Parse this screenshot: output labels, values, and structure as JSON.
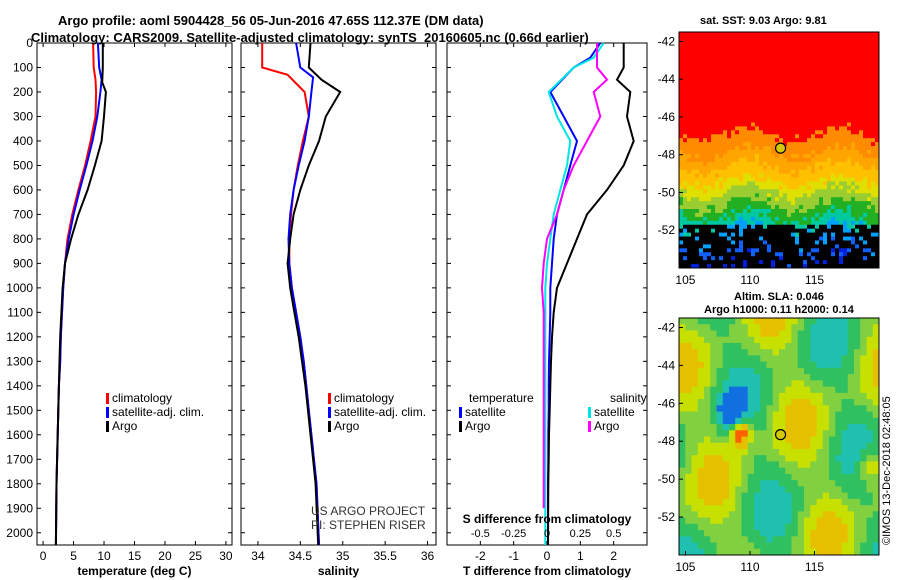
{
  "header": {
    "line1": "Argo profile: aoml 5904428_56 05-Jun-2016 47.65S 112.37E (DM data)",
    "line2": "Climatology: CARS2009. Satellite-adjusted climatology: synTS_20160605.nc (0.66d earlier)"
  },
  "map_titles": {
    "sst": "sat. SST: 9.03 Argo: 9.81",
    "sla1": "Altim. SLA: 0.046",
    "sla2": "Argo h1000: 0.11 h2000: 0.14"
  },
  "credit": {
    "project": "US ARGO PROJECT",
    "pi": "PI: STEPHEN RISER",
    "stamp": "©IMOS 13-Dec-2018 02:48:05"
  },
  "legends": {
    "temperature": [
      "climatology",
      "satellite-adj. clim.",
      "Argo"
    ],
    "salinity": [
      "climatology",
      "satellite-adj. clim.",
      "Argo"
    ],
    "diff_left_title": "temperature",
    "diff_left": [
      "satellite",
      "Argo"
    ],
    "diff_right_title": "salinity",
    "diff_right": [
      "satellite",
      "Argo"
    ]
  },
  "colors": {
    "climatology": "#ff0000",
    "satellite": "#0000ff",
    "argo": "#000000",
    "sal_satellite": "#00e5e5",
    "sal_argo": "#ff00ff"
  },
  "chart_data": [
    {
      "type": "line",
      "xlabel": "temperature (deg C)",
      "xlim": [
        -1,
        31
      ],
      "xticks": [
        0,
        5,
        10,
        15,
        20,
        25,
        30
      ],
      "xtick_labels": [
        "0",
        "5",
        "10",
        "15",
        "20",
        "25",
        "30"
      ],
      "ylim": [
        0,
        2050
      ],
      "yticks": [
        0,
        100,
        200,
        300,
        400,
        500,
        600,
        700,
        800,
        900,
        1000,
        1100,
        1200,
        1300,
        1400,
        1500,
        1600,
        1700,
        1800,
        1900,
        2000
      ],
      "series": [
        {
          "name": "climatology",
          "color": "#ff0000",
          "x": [
            8.2,
            8.3,
            8.6,
            8.7,
            8.6,
            7.8,
            6.9,
            5.8,
            4.8,
            4.0,
            3.6,
            3.3,
            3.1,
            2.9,
            2.8,
            2.6,
            2.5,
            2.4,
            2.3,
            2.2,
            2.1
          ],
          "y": [
            0,
            100,
            150,
            200,
            300,
            400,
            500,
            600,
            700,
            800,
            900,
            1000,
            1100,
            1200,
            1300,
            1400,
            1500,
            1600,
            1700,
            1800,
            2050
          ]
        },
        {
          "name": "satellite-adj. clim.",
          "color": "#0000ff",
          "x": [
            9.0,
            9.2,
            9.6,
            9.4,
            8.9,
            8.1,
            7.1,
            6.0,
            5.0,
            4.2,
            3.6,
            3.3,
            3.1,
            2.9,
            2.8,
            2.6,
            2.5,
            2.4,
            2.3,
            2.2,
            2.1
          ],
          "y": [
            0,
            100,
            150,
            200,
            300,
            400,
            500,
            600,
            700,
            800,
            900,
            1000,
            1100,
            1200,
            1300,
            1400,
            1500,
            1600,
            1700,
            1800,
            2050
          ]
        },
        {
          "name": "Argo",
          "color": "#000000",
          "x": [
            9.8,
            9.8,
            9.7,
            10.3,
            10.0,
            9.6,
            8.5,
            7.3,
            5.8,
            4.6,
            3.6,
            3.2,
            3.0,
            2.8,
            2.7,
            2.6,
            2.5,
            2.4,
            2.3,
            2.2,
            2.1
          ],
          "y": [
            0,
            100,
            160,
            200,
            300,
            400,
            500,
            600,
            700,
            800,
            900,
            1000,
            1100,
            1200,
            1300,
            1400,
            1500,
            1600,
            1700,
            1800,
            2050
          ]
        }
      ]
    },
    {
      "type": "line",
      "xlabel": "salinity",
      "xlim": [
        33.8,
        36.1
      ],
      "xticks": [
        34,
        34.5,
        35,
        35.5,
        36
      ],
      "xtick_labels": [
        "34",
        "34.5",
        "35",
        "35.5",
        "36"
      ],
      "ylim": [
        0,
        2050
      ],
      "yticks": [
        0,
        100,
        200,
        300,
        400,
        500,
        600,
        700,
        800,
        900,
        1000,
        1100,
        1200,
        1300,
        1400,
        1500,
        1600,
        1700,
        1800,
        1900,
        2000
      ],
      "series": [
        {
          "name": "climatology",
          "color": "#ff0000",
          "x": [
            34.05,
            34.05,
            34.35,
            34.55,
            34.6,
            34.53,
            34.47,
            34.42,
            34.39,
            34.37,
            34.37,
            34.4,
            34.45,
            34.5,
            34.54,
            34.57,
            34.6,
            34.63,
            34.66,
            34.69,
            34.72
          ],
          "y": [
            0,
            100,
            130,
            200,
            300,
            400,
            500,
            600,
            700,
            800,
            900,
            1000,
            1100,
            1200,
            1300,
            1400,
            1500,
            1600,
            1700,
            1800,
            2050
          ]
        },
        {
          "name": "satellite-adj. clim.",
          "color": "#0000ff",
          "x": [
            34.45,
            34.5,
            34.65,
            34.63,
            34.6,
            34.55,
            34.48,
            34.42,
            34.38,
            34.36,
            34.37,
            34.4,
            34.45,
            34.5,
            34.54,
            34.57,
            34.6,
            34.63,
            34.66,
            34.69,
            34.72
          ],
          "y": [
            0,
            100,
            140,
            200,
            300,
            400,
            500,
            600,
            700,
            800,
            900,
            1000,
            1100,
            1200,
            1300,
            1400,
            1500,
            1600,
            1700,
            1800,
            2050
          ]
        },
        {
          "name": "Argo",
          "color": "#000000",
          "x": [
            34.62,
            34.6,
            34.75,
            34.97,
            34.8,
            34.72,
            34.6,
            34.5,
            34.42,
            34.38,
            34.35,
            34.38,
            34.43,
            34.48,
            34.52,
            34.56,
            34.59,
            34.62,
            34.65,
            34.68,
            34.71
          ],
          "y": [
            0,
            100,
            150,
            200,
            300,
            400,
            500,
            600,
            700,
            800,
            900,
            1000,
            1100,
            1200,
            1300,
            1400,
            1500,
            1600,
            1700,
            1800,
            2050
          ]
        }
      ]
    },
    {
      "type": "line",
      "xlabel": "T difference from climatology",
      "xlabel2": "S difference from climatology",
      "xlim": [
        -3,
        3
      ],
      "xticks": [
        -2,
        -1,
        0,
        1,
        2
      ],
      "xtick_labels": [
        "-2",
        "-1",
        "0",
        "1",
        "2"
      ],
      "x2tick_labels": [
        "-0.5",
        "-0.25",
        "0",
        "0.25",
        "0.5"
      ],
      "ylim": [
        0,
        2050
      ],
      "yticks": [
        0,
        100,
        200,
        300,
        400,
        500,
        600,
        700,
        800,
        900,
        1000,
        1100,
        1200,
        1300,
        1400,
        1500,
        1600,
        1700,
        1800,
        1900,
        2000
      ],
      "series": [
        {
          "name": "temperature satellite",
          "color": "#0000ff",
          "x": [
            1.6,
            1.3,
            0.8,
            0.1,
            0.5,
            0.9,
            0.7,
            0.5,
            0.3,
            0.2,
            0.15,
            0.1,
            0.1,
            0.08,
            0.06,
            0.05,
            0.05,
            0.04,
            0.04,
            0.03,
            0.03
          ],
          "y": [
            0,
            60,
            100,
            200,
            300,
            400,
            500,
            600,
            700,
            800,
            900,
            1000,
            1100,
            1200,
            1300,
            1400,
            1500,
            1600,
            1700,
            1800,
            2050
          ]
        },
        {
          "name": "temperature Argo",
          "color": "#000000",
          "x": [
            2.3,
            2.3,
            2.1,
            2.5,
            2.4,
            2.6,
            2.3,
            1.8,
            1.2,
            0.9,
            0.6,
            0.3,
            0.2,
            0.15,
            0.12,
            0.1,
            0.08,
            0.06,
            0.05,
            0.04,
            0.03
          ],
          "y": [
            0,
            100,
            150,
            200,
            300,
            400,
            500,
            600,
            700,
            800,
            900,
            1000,
            1100,
            1200,
            1300,
            1400,
            1500,
            1600,
            1700,
            1800,
            2050
          ]
        },
        {
          "name": "salinity satellite",
          "color": "#00e5e5",
          "x": [
            1.7,
            1.4,
            0.8,
            0.05,
            0.3,
            0.7,
            0.6,
            0.4,
            0.2,
            0.1,
            0.0,
            -0.05,
            -0.05,
            -0.05,
            -0.05,
            -0.05,
            -0.05,
            -0.05,
            -0.05,
            -0.05,
            -0.05
          ],
          "y": [
            0,
            60,
            100,
            200,
            300,
            400,
            500,
            600,
            700,
            800,
            900,
            1000,
            1100,
            1200,
            1300,
            1400,
            1500,
            1600,
            1700,
            1800,
            2050
          ]
        },
        {
          "name": "salinity Argo",
          "color": "#ff00ff",
          "x": [
            1.5,
            1.5,
            1.8,
            1.4,
            1.6,
            1.2,
            0.8,
            0.5,
            0.3,
            0.0,
            -0.1,
            -0.15,
            -0.1,
            -0.1,
            -0.1,
            -0.1,
            -0.1,
            -0.1,
            -0.1,
            -0.1,
            -0.1
          ],
          "y": [
            0,
            100,
            150,
            200,
            300,
            400,
            500,
            600,
            700,
            800,
            900,
            1000,
            1100,
            1200,
            1300,
            1400,
            1500,
            1600,
            1700,
            1800,
            1900
          ]
        }
      ]
    },
    {
      "type": "heatmap",
      "title": "sat. SST: 9.03 Argo: 9.81",
      "xlim": [
        104.5,
        120
      ],
      "ylim": [
        -54,
        -41.5
      ],
      "xticks": [
        105,
        110,
        115
      ],
      "yticks": [
        -42,
        -44,
        -46,
        -48,
        -50,
        -52
      ],
      "marker": {
        "lon": 112.37,
        "lat": -47.65
      }
    },
    {
      "type": "heatmap",
      "title": "Altim. SLA: 0.046",
      "xlim": [
        104.5,
        120
      ],
      "ylim": [
        -54,
        -41.5
      ],
      "xticks": [
        105,
        110,
        115
      ],
      "yticks": [
        -42,
        -44,
        -46,
        -48,
        -50,
        -52
      ],
      "marker": {
        "lon": 112.37,
        "lat": -47.65
      }
    }
  ]
}
